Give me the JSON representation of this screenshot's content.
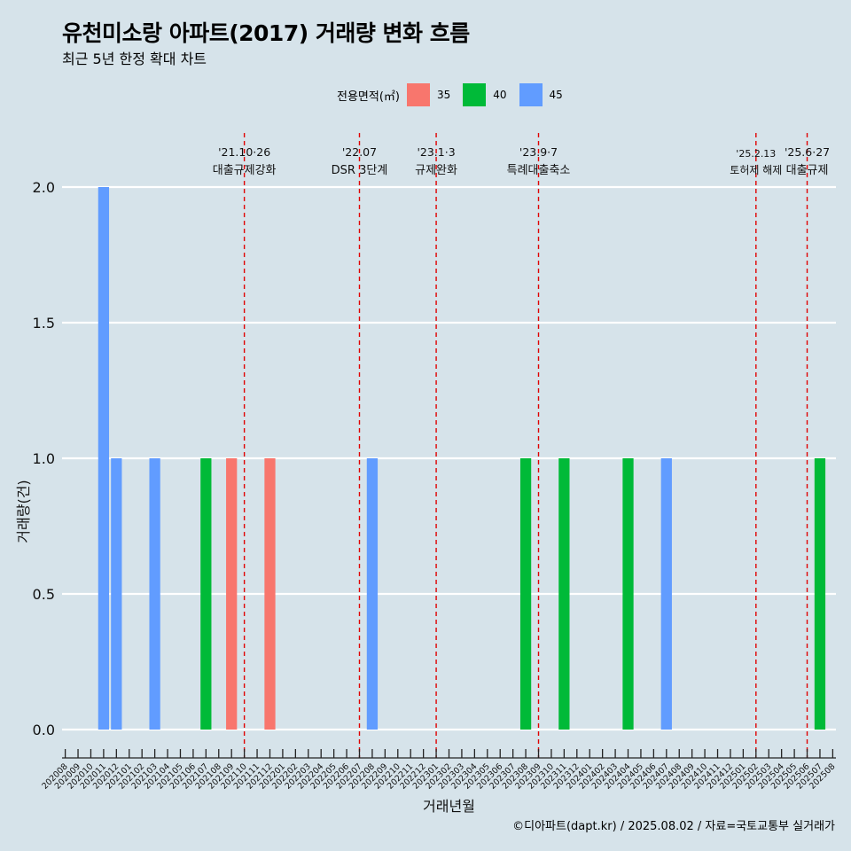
{
  "title": "유천미소랑 아파트(2017) 거래량 변화 흐름",
  "subtitle": "최근 5년 한정 확대 차트",
  "caption": "©디아파트(dapt.kr) / 2025.08.02 / 자료=국토교통부 실거래가",
  "legend": {
    "title": "전용면적(㎡)",
    "items": [
      {
        "label": "35",
        "color": "#f8766d"
      },
      {
        "label": "40",
        "color": "#00ba38"
      },
      {
        "label": "45",
        "color": "#619cff"
      }
    ]
  },
  "chart_data": {
    "type": "bar",
    "title": "유천미소랑 아파트(2017) 거래량 변화 흐름",
    "xlabel": "거래년월",
    "ylabel": "거래량(건)",
    "ylim": [
      0,
      2
    ],
    "yticks": [
      0.0,
      0.5,
      1.0,
      1.5,
      2.0
    ],
    "ytick_labels": [
      "0.0",
      "0.5",
      "1.0",
      "1.5",
      "2.0"
    ],
    "categories": [
      "202008",
      "202009",
      "202010",
      "202011",
      "202012",
      "202101",
      "202102",
      "202103",
      "202104",
      "202105",
      "202106",
      "202107",
      "202108",
      "202109",
      "202110",
      "202111",
      "202112",
      "202201",
      "202202",
      "202203",
      "202204",
      "202205",
      "202206",
      "202207",
      "202208",
      "202209",
      "202210",
      "202211",
      "202212",
      "202301",
      "202302",
      "202303",
      "202304",
      "202305",
      "202306",
      "202307",
      "202308",
      "202309",
      "202310",
      "202311",
      "202312",
      "202401",
      "202402",
      "202403",
      "202404",
      "202405",
      "202406",
      "202407",
      "202408",
      "202409",
      "202410",
      "202411",
      "202412",
      "202501",
      "202502",
      "202503",
      "202504",
      "202505",
      "202506",
      "202507",
      "202508"
    ],
    "bars": [
      {
        "month": "202011",
        "area": "45",
        "value": 2
      },
      {
        "month": "202012",
        "area": "45",
        "value": 1
      },
      {
        "month": "202103",
        "area": "45",
        "value": 1
      },
      {
        "month": "202107",
        "area": "40",
        "value": 1
      },
      {
        "month": "202109",
        "area": "35",
        "value": 1
      },
      {
        "month": "202112",
        "area": "35",
        "value": 1
      },
      {
        "month": "202208",
        "area": "45",
        "value": 1
      },
      {
        "month": "202308",
        "area": "40",
        "value": 1
      },
      {
        "month": "202311",
        "area": "40",
        "value": 1
      },
      {
        "month": "202404",
        "area": "40",
        "value": 1
      },
      {
        "month": "202407",
        "area": "45",
        "value": 1
      },
      {
        "month": "202507",
        "area": "40",
        "value": 1
      }
    ],
    "events": [
      {
        "month": "202110",
        "date": "'21.10·26",
        "label": "대출규제강화"
      },
      {
        "month": "202207",
        "date": "'22.07",
        "label": "DSR 3단계"
      },
      {
        "month": "202301",
        "date": "'23.1·3",
        "label": "규제완화"
      },
      {
        "month": "202309",
        "date": "'23.9·7",
        "label": "특례대출축소"
      },
      {
        "month": "202502",
        "date": "'25.2.13",
        "label": "토허제 해제"
      },
      {
        "month": "202506",
        "date": "'25.6·27",
        "label": "대출규제"
      }
    ]
  }
}
